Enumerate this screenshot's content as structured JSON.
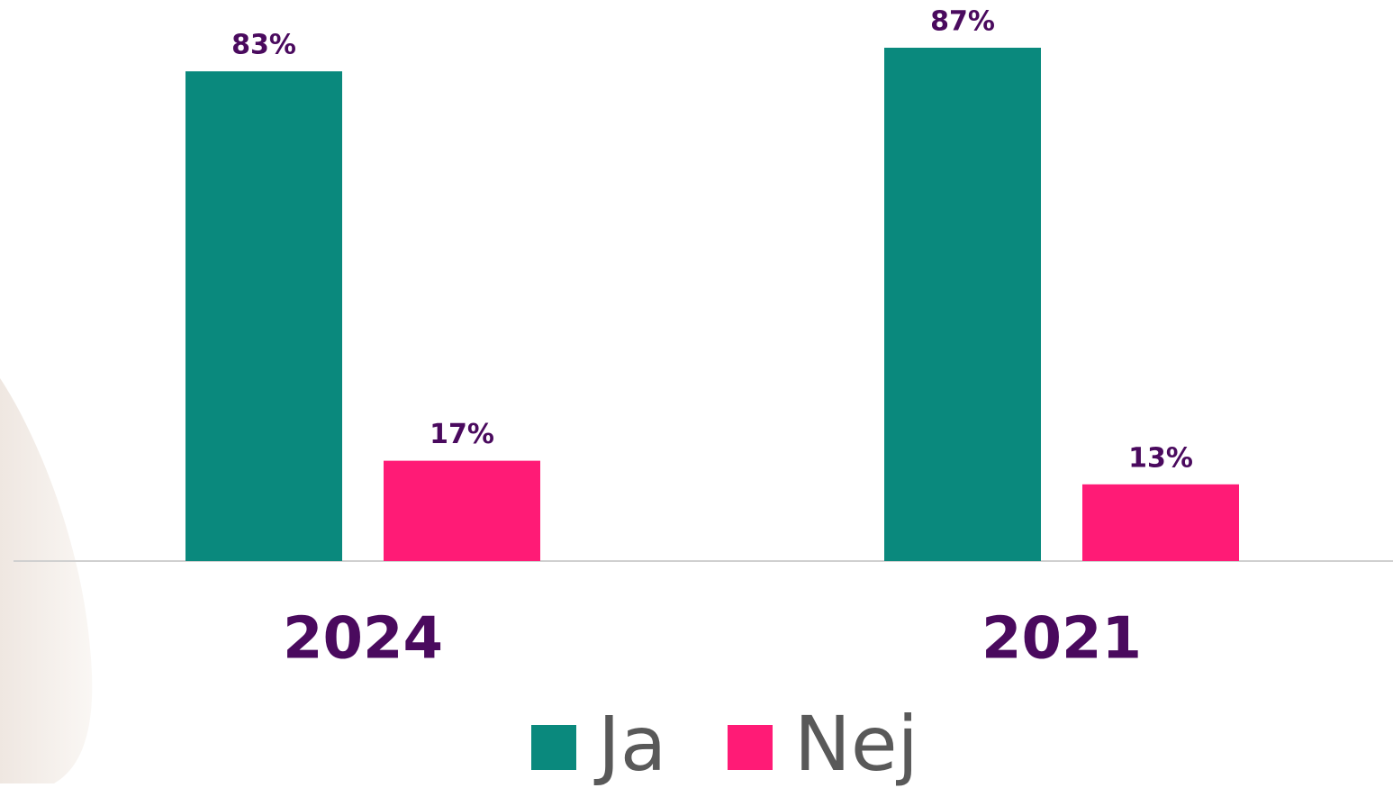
{
  "chart_data": {
    "type": "bar",
    "categories": [
      "2024",
      "2021"
    ],
    "series": [
      {
        "name": "Ja",
        "color": "#0a897d",
        "values": [
          83,
          87
        ],
        "value_labels": [
          "83%",
          "87%"
        ]
      },
      {
        "name": "Nej",
        "color": "#ff1b76",
        "values": [
          17,
          13
        ],
        "value_labels": [
          "17%",
          "13%"
        ]
      }
    ]
  }
}
